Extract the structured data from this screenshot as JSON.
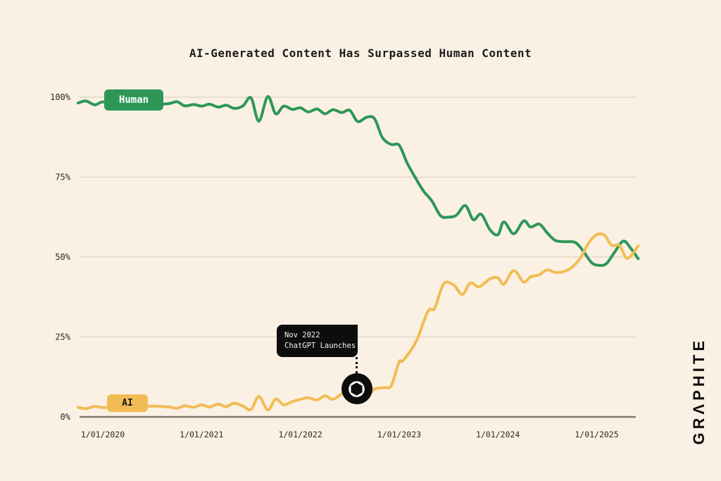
{
  "title": "AI-Generated Content Has Surpassed Human Content",
  "logo_text": "GRΛPHITE",
  "legend": {
    "human_label": "Human",
    "ai_label": "AI"
  },
  "annotation": {
    "line1": "Nov 2022",
    "line2": "ChatGPT Launches",
    "icon": "openai-logo"
  },
  "colors": {
    "background": "#faf1e4",
    "human_green": "#2e9758",
    "ai_yellow": "#f2bc55",
    "annotation_black": "#0d0d0d",
    "grid": "#ddd3c3",
    "axis_baseline": "#7d7b75",
    "text": "#1c1c1c"
  },
  "chart_data": {
    "type": "line",
    "title": "AI-Generated Content Has Surpassed Human Content",
    "xlabel": "",
    "ylabel": "",
    "grid": "horizontal",
    "ylim": [
      0,
      100
    ],
    "x_tick_years": [
      2020,
      2021,
      2022,
      2023,
      2024,
      2025
    ],
    "x_tick_labels": [
      "1/01/2020",
      "1/01/2021",
      "1/01/2022",
      "1/01/2023",
      "1/01/2024",
      "1/01/2025"
    ],
    "y_tick_pcts": [
      0,
      25,
      50,
      75,
      100
    ],
    "y_tick_labels": [
      "0%",
      "25%",
      "50%",
      "75%",
      "100%"
    ],
    "legend_position": "badges-on-lines",
    "annotation_point": {
      "series": "AI",
      "x": 2022.57,
      "y": 8.8,
      "label": "Nov 2022 ChatGPT Launches"
    },
    "series": [
      {
        "name": "Human",
        "color": "#2e9758",
        "points": [
          [
            2019.75,
            98.2
          ],
          [
            2019.83,
            98.8
          ],
          [
            2019.92,
            97.6
          ],
          [
            2020.0,
            98.5
          ],
          [
            2020.17,
            98.0
          ],
          [
            2020.33,
            98.3
          ],
          [
            2020.5,
            97.8
          ],
          [
            2020.67,
            98.0
          ],
          [
            2020.75,
            98.6
          ],
          [
            2020.83,
            97.3
          ],
          [
            2020.92,
            97.7
          ],
          [
            2021.0,
            97.2
          ],
          [
            2021.08,
            97.8
          ],
          [
            2021.17,
            96.9
          ],
          [
            2021.25,
            97.5
          ],
          [
            2021.33,
            96.5
          ],
          [
            2021.42,
            97.3
          ],
          [
            2021.5,
            99.8
          ],
          [
            2021.58,
            92.5
          ],
          [
            2021.67,
            100.2
          ],
          [
            2021.75,
            94.8
          ],
          [
            2021.83,
            97.2
          ],
          [
            2021.92,
            96.2
          ],
          [
            2022.0,
            96.7
          ],
          [
            2022.08,
            95.4
          ],
          [
            2022.17,
            96.3
          ],
          [
            2022.25,
            94.8
          ],
          [
            2022.33,
            96.1
          ],
          [
            2022.42,
            95.2
          ],
          [
            2022.5,
            95.9
          ],
          [
            2022.58,
            92.4
          ],
          [
            2022.67,
            93.7
          ],
          [
            2022.75,
            93.3
          ],
          [
            2022.83,
            87.4
          ],
          [
            2022.92,
            85.2
          ],
          [
            2023.0,
            85.0
          ],
          [
            2023.08,
            79.5
          ],
          [
            2023.17,
            74.5
          ],
          [
            2023.25,
            70.5
          ],
          [
            2023.33,
            67.6
          ],
          [
            2023.42,
            62.9
          ],
          [
            2023.5,
            62.5
          ],
          [
            2023.58,
            63.1
          ],
          [
            2023.67,
            66.1
          ],
          [
            2023.75,
            61.7
          ],
          [
            2023.83,
            63.4
          ],
          [
            2023.92,
            58.5
          ],
          [
            2024.0,
            57.0
          ],
          [
            2024.06,
            61.0
          ],
          [
            2024.16,
            57.3
          ],
          [
            2024.26,
            61.3
          ],
          [
            2024.33,
            59.4
          ],
          [
            2024.42,
            60.3
          ],
          [
            2024.5,
            57.5
          ],
          [
            2024.58,
            55.2
          ],
          [
            2024.67,
            54.8
          ],
          [
            2024.78,
            54.6
          ],
          [
            2024.86,
            52.0
          ],
          [
            2024.95,
            48.2
          ],
          [
            2025.03,
            47.4
          ],
          [
            2025.1,
            48.0
          ],
          [
            2025.18,
            51.5
          ],
          [
            2025.27,
            55.0
          ],
          [
            2025.35,
            52.5
          ],
          [
            2025.42,
            49.5
          ]
        ]
      },
      {
        "name": "AI",
        "color": "#f2bc55",
        "points": [
          [
            2019.75,
            3.0
          ],
          [
            2019.83,
            2.6
          ],
          [
            2019.92,
            3.3
          ],
          [
            2020.0,
            2.9
          ],
          [
            2020.17,
            3.3
          ],
          [
            2020.33,
            3.0
          ],
          [
            2020.5,
            3.4
          ],
          [
            2020.67,
            3.1
          ],
          [
            2020.75,
            2.7
          ],
          [
            2020.83,
            3.5
          ],
          [
            2020.92,
            3.0
          ],
          [
            2021.0,
            3.8
          ],
          [
            2021.08,
            3.1
          ],
          [
            2021.17,
            4.0
          ],
          [
            2021.25,
            3.2
          ],
          [
            2021.33,
            4.3
          ],
          [
            2021.42,
            3.4
          ],
          [
            2021.5,
            2.3
          ],
          [
            2021.58,
            6.4
          ],
          [
            2021.67,
            2.2
          ],
          [
            2021.75,
            5.6
          ],
          [
            2021.83,
            3.8
          ],
          [
            2021.92,
            4.8
          ],
          [
            2022.0,
            5.5
          ],
          [
            2022.08,
            6.0
          ],
          [
            2022.17,
            5.3
          ],
          [
            2022.25,
            6.6
          ],
          [
            2022.33,
            5.5
          ],
          [
            2022.42,
            7.2
          ],
          [
            2022.5,
            7.8
          ],
          [
            2022.58,
            8.3
          ],
          [
            2022.67,
            6.3
          ],
          [
            2022.75,
            8.7
          ],
          [
            2022.85,
            9.2
          ],
          [
            2022.92,
            9.8
          ],
          [
            2023.0,
            17.2
          ],
          [
            2023.04,
            17.6
          ],
          [
            2023.17,
            23.5
          ],
          [
            2023.29,
            33.0
          ],
          [
            2023.36,
            34.0
          ],
          [
            2023.45,
            41.6
          ],
          [
            2023.55,
            41.3
          ],
          [
            2023.64,
            38.3
          ],
          [
            2023.72,
            41.9
          ],
          [
            2023.81,
            40.7
          ],
          [
            2023.92,
            43.2
          ],
          [
            2024.0,
            43.5
          ],
          [
            2024.06,
            41.5
          ],
          [
            2024.16,
            45.8
          ],
          [
            2024.26,
            42.2
          ],
          [
            2024.33,
            43.8
          ],
          [
            2024.42,
            44.5
          ],
          [
            2024.5,
            46.0
          ],
          [
            2024.58,
            45.2
          ],
          [
            2024.67,
            45.5
          ],
          [
            2024.75,
            46.8
          ],
          [
            2024.83,
            49.5
          ],
          [
            2024.92,
            54.5
          ],
          [
            2025.0,
            57.0
          ],
          [
            2025.08,
            56.8
          ],
          [
            2025.15,
            53.7
          ],
          [
            2025.23,
            53.6
          ],
          [
            2025.31,
            49.6
          ],
          [
            2025.42,
            53.5
          ]
        ]
      }
    ]
  }
}
